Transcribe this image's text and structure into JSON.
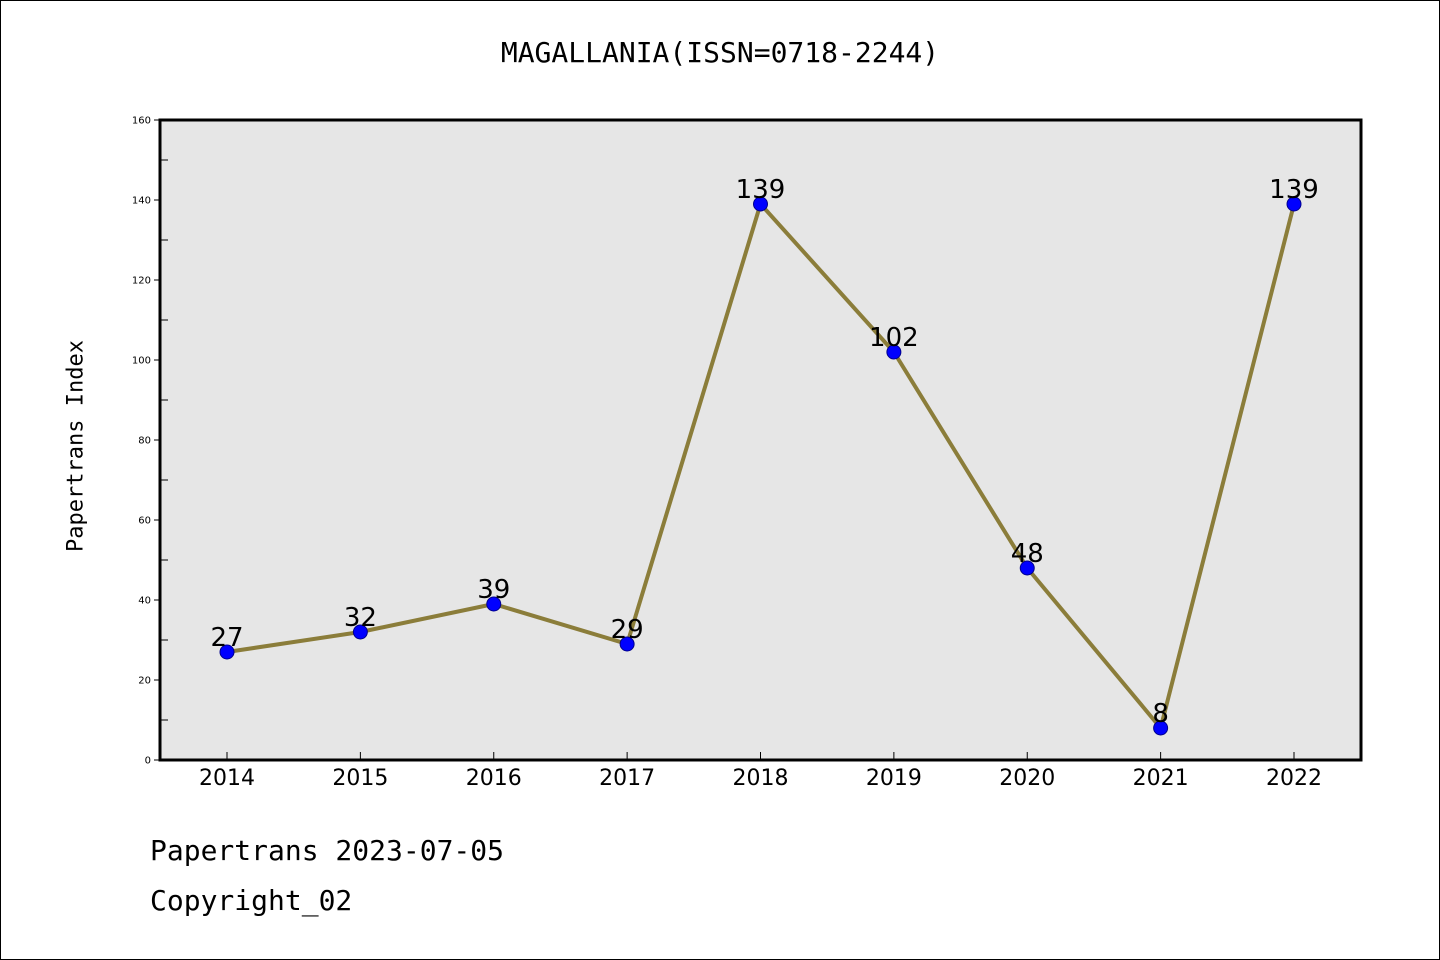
{
  "chart_data": {
    "type": "line",
    "title": "MAGALLANIA(ISSN=0718-2244)",
    "xlabel": "",
    "ylabel": "Papertrans Index",
    "categories": [
      "2014",
      "2015",
      "2016",
      "2017",
      "2018",
      "2019",
      "2020",
      "2021",
      "2022"
    ],
    "series": [
      {
        "values": [
          27,
          32,
          39,
          29,
          139,
          102,
          48,
          8,
          139
        ]
      }
    ],
    "ylim": [
      0,
      160
    ],
    "yticks": [
      0,
      20,
      40,
      60,
      80,
      100,
      120,
      140,
      160
    ],
    "grid": false,
    "data_labels": true,
    "colors": {
      "line": "#8b7d3a",
      "marker": "#0000ff",
      "plot_background": "#e6e6e6"
    }
  },
  "footer": {
    "date_text": "Papertrans 2023-07-05",
    "copyright_text": "Copyright_02"
  }
}
